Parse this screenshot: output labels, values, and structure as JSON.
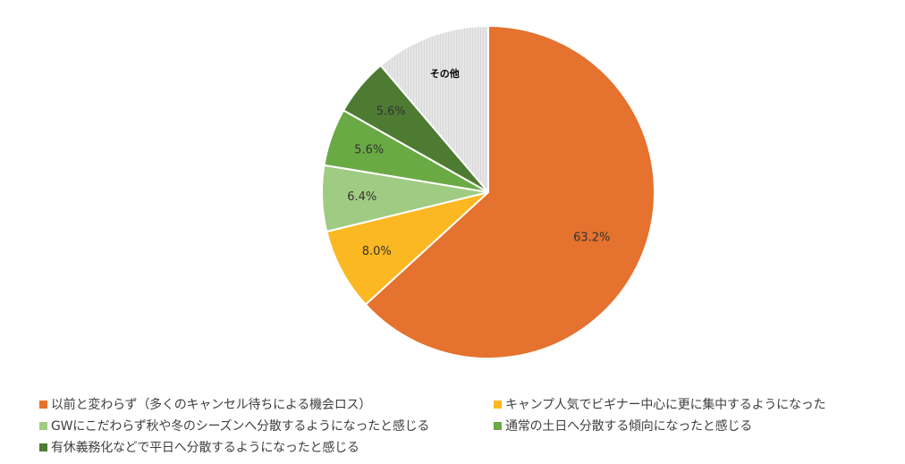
{
  "chart_data": {
    "type": "pie",
    "start_angle_deg": 0,
    "direction": "clockwise",
    "slices": [
      {
        "label": "以前と変わらず（多くのキャンセル待ちによる機会ロス）",
        "value": 63.2,
        "data_label": "63.2%",
        "color": "#E5722E"
      },
      {
        "label": "キャンプ人気でビギナー中心に更に集中するようになった",
        "value": 8.0,
        "data_label": "8.0%",
        "color": "#FBB822"
      },
      {
        "label": "GWにこだわらず秋や冬のシーズンへ分散するようになったと感じる",
        "value": 6.4,
        "data_label": "6.4%",
        "color": "#A0CB82"
      },
      {
        "label": "通常の土日へ分散する傾向になったと感じる",
        "value": 5.6,
        "data_label": "5.6%",
        "color": "#6AAA45"
      },
      {
        "label": "有休義務化などで平日へ分散するようになったと感じる",
        "value": 5.6,
        "data_label": "5.6%",
        "color": "#4E7B32"
      },
      {
        "label": "その他",
        "value": 11.2,
        "data_label": "その他",
        "color": "#E3E3E3",
        "pattern": "vertical-lines"
      }
    ],
    "legend_position": "bottom",
    "legend_order": [
      0,
      1,
      2,
      3,
      4
    ]
  }
}
